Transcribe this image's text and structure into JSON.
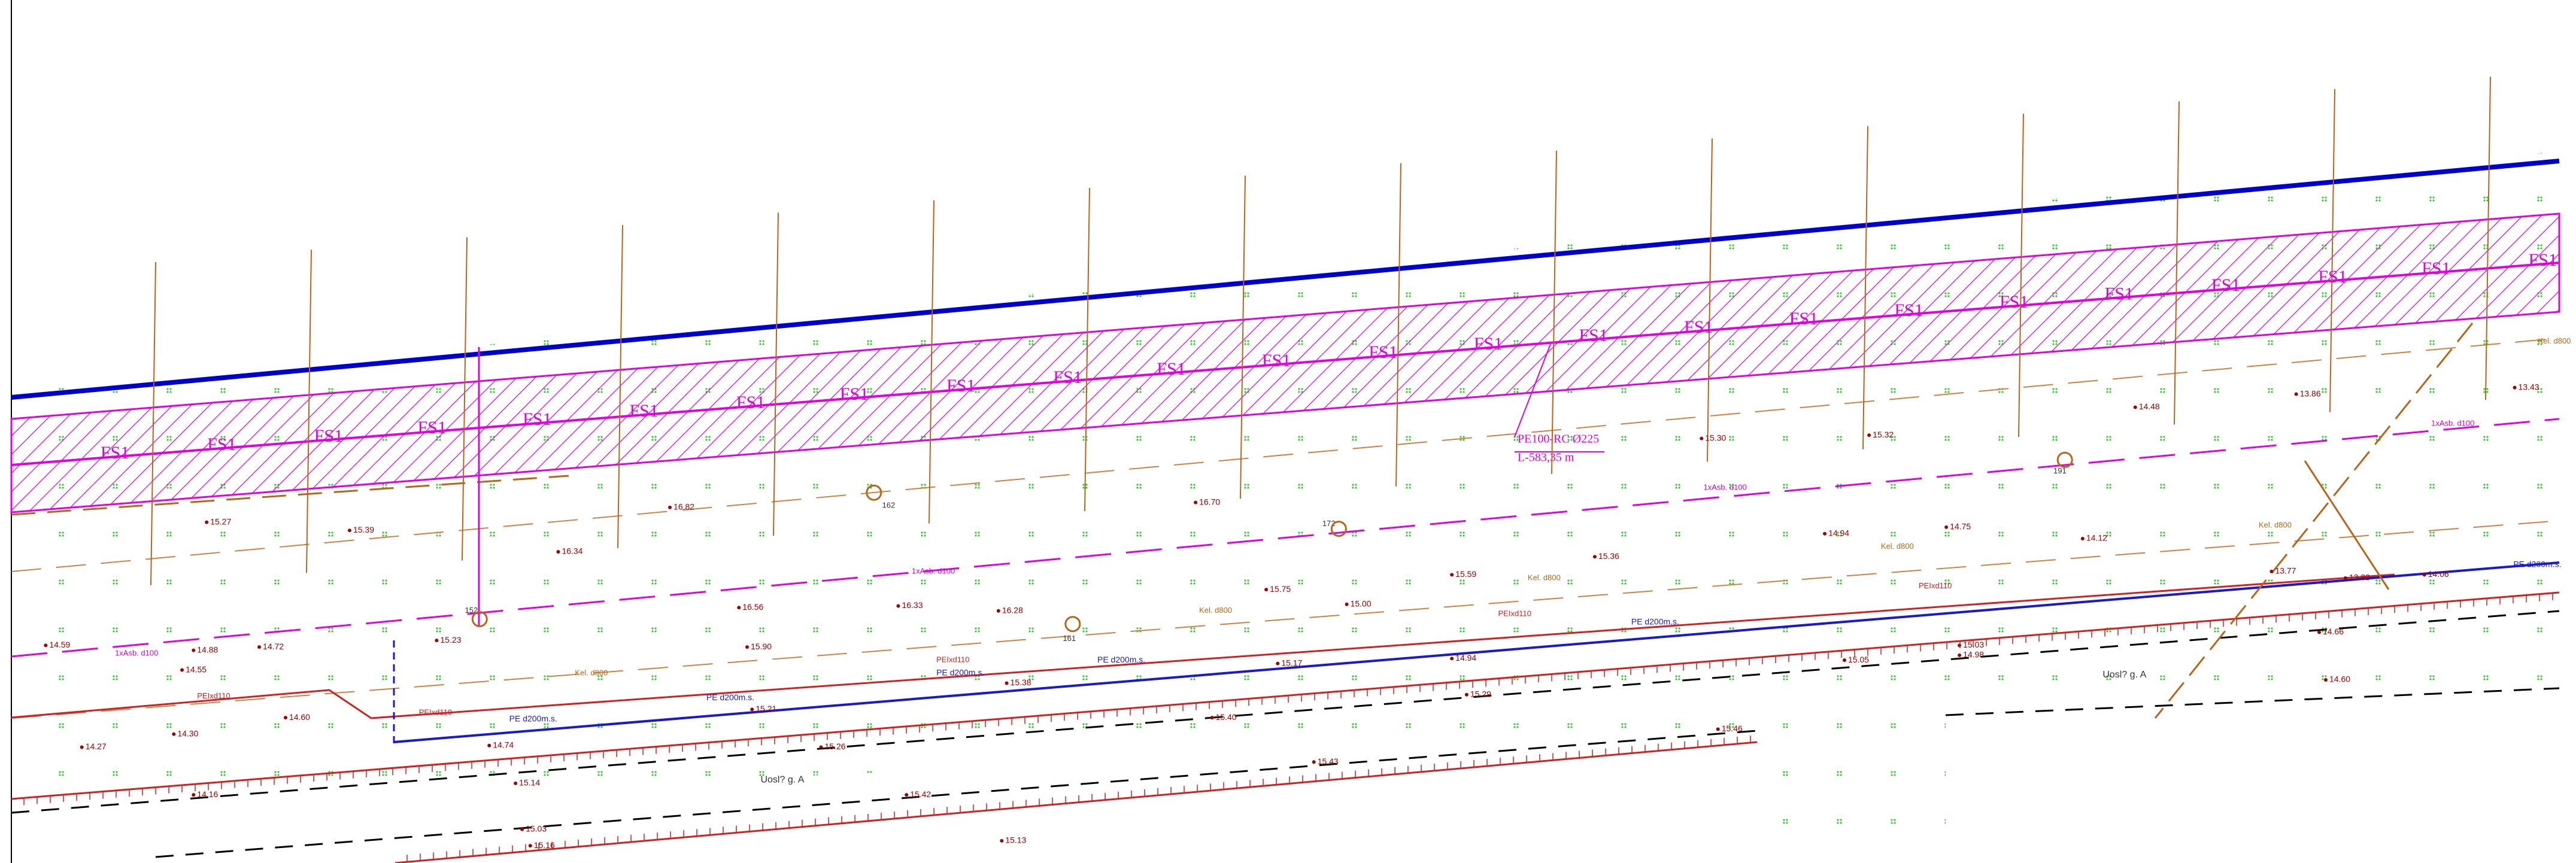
{
  "callout": {
    "line1": "PE100-RC Ø225",
    "line2": "L-583,35 m"
  },
  "band_labels": [
    "FS1",
    "FS1",
    "FS1",
    "FS1",
    "FS1",
    "FS1",
    "FS1",
    "FS1",
    "FS1",
    "FS1",
    "FS1",
    "FS1",
    "FS1",
    "FS1",
    "FS1",
    "FS1",
    "FS1",
    "FS1",
    "FS1",
    "FS1",
    "FS1",
    "FS1",
    "FS1",
    "FS1"
  ],
  "spot_heights": [
    "15.27",
    "15.39",
    "16.82",
    "16.70",
    "15.30",
    "15.32",
    "14.48",
    "13.86",
    "13.43",
    "16.34",
    "15.75",
    "15.00",
    "15.59",
    "15.36",
    "14.94",
    "14.75",
    "14.12",
    "13.77",
    "13.83",
    "14.06",
    "14.59",
    "14.88",
    "14.72",
    "15.23",
    "14.55",
    "16.56",
    "16.33",
    "16.28",
    "15.90",
    "15.38",
    "15.17",
    "14.94",
    "14.74",
    "14.30",
    "14.60",
    "14.27",
    "14.16",
    "15.14",
    "15.26",
    "15.42",
    "15.43",
    "15.29",
    "15.21",
    "15.40",
    "15.05",
    "15.03",
    "14.98",
    "14.66",
    "14.60",
    "15.46",
    "15.03",
    "15.16",
    "15.13"
  ],
  "node_labels": [
    "152",
    "162",
    "172",
    "161",
    "191"
  ],
  "road_labels": [
    "Uosl? g. A",
    "Uosl? g. A"
  ],
  "pipe_labels": [
    "PE d200m.s.",
    "PE d200m.s.",
    "PE d200m.s.",
    "PE d200m.s.",
    "PE d200m.s.",
    "PE d200m.s."
  ],
  "sewer_labels": [
    "Kel. d800",
    "Kel. d800",
    "Kel. d800",
    "Kel. d800",
    "Kel. d800",
    "Kel. d800"
  ],
  "cable_labels": [
    "1xAsb. d100",
    "1xAsb. d100",
    "1xAsb. d100",
    "1xAsb. d100"
  ],
  "power_labels": [
    "PEIxd110",
    "PEIxd110",
    "PEIxd110",
    "PEIxd110",
    "PEIxd110"
  ]
}
